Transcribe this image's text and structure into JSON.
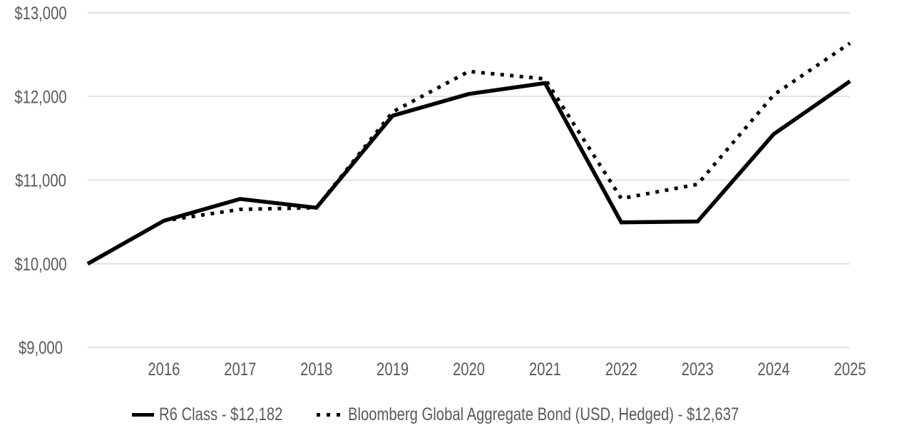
{
  "chart_data": {
    "type": "line",
    "title": "",
    "x": [
      2015,
      2016,
      2017,
      2018,
      2019,
      2020,
      2021,
      2022,
      2023,
      2024,
      2025
    ],
    "series": [
      {
        "name": "R6 Class - $12,182",
        "line_style": "solid",
        "color": "#000000",
        "final_value": "$12,182",
        "values": [
          10000,
          10515,
          10775,
          10670,
          11770,
          12030,
          12160,
          10495,
          10505,
          11550,
          12182
        ]
      },
      {
        "name": "Bloomberg Global Aggregate Bond (USD, Hedged) - $12,637",
        "line_style": "dotted",
        "color": "#000000",
        "final_value": "$12,637",
        "values": [
          10000,
          10515,
          10650,
          10670,
          11815,
          12300,
          12210,
          10780,
          10950,
          12020,
          12637
        ]
      }
    ],
    "x_ticks": [
      {
        "label": "2016",
        "value": 2016
      },
      {
        "label": "2017",
        "value": 2017
      },
      {
        "label": "2018",
        "value": 2018
      },
      {
        "label": "2019",
        "value": 2019
      },
      {
        "label": "2020",
        "value": 2020
      },
      {
        "label": "2021",
        "value": 2021
      },
      {
        "label": "2022",
        "value": 2022
      },
      {
        "label": "2023",
        "value": 2023
      },
      {
        "label": "2024",
        "value": 2024
      },
      {
        "label": "2025",
        "value": 2025
      }
    ],
    "y_ticks": [
      {
        "label": "$9,000",
        "value": 9000
      },
      {
        "label": "$10,000",
        "value": 10000
      },
      {
        "label": "$11,000",
        "value": 11000
      },
      {
        "label": "$12,000",
        "value": 12000
      },
      {
        "label": "$13,000",
        "value": 13000
      }
    ],
    "xlim": [
      2015,
      2025
    ],
    "ylim": [
      9000,
      13000
    ],
    "grid": "horizontal-only",
    "legend_position": "bottom"
  },
  "colors": {
    "line": "#000000",
    "gridline": "#e0e0e0",
    "tick_label": "#595959",
    "legend_label": "#595959",
    "background": "#ffffff"
  }
}
